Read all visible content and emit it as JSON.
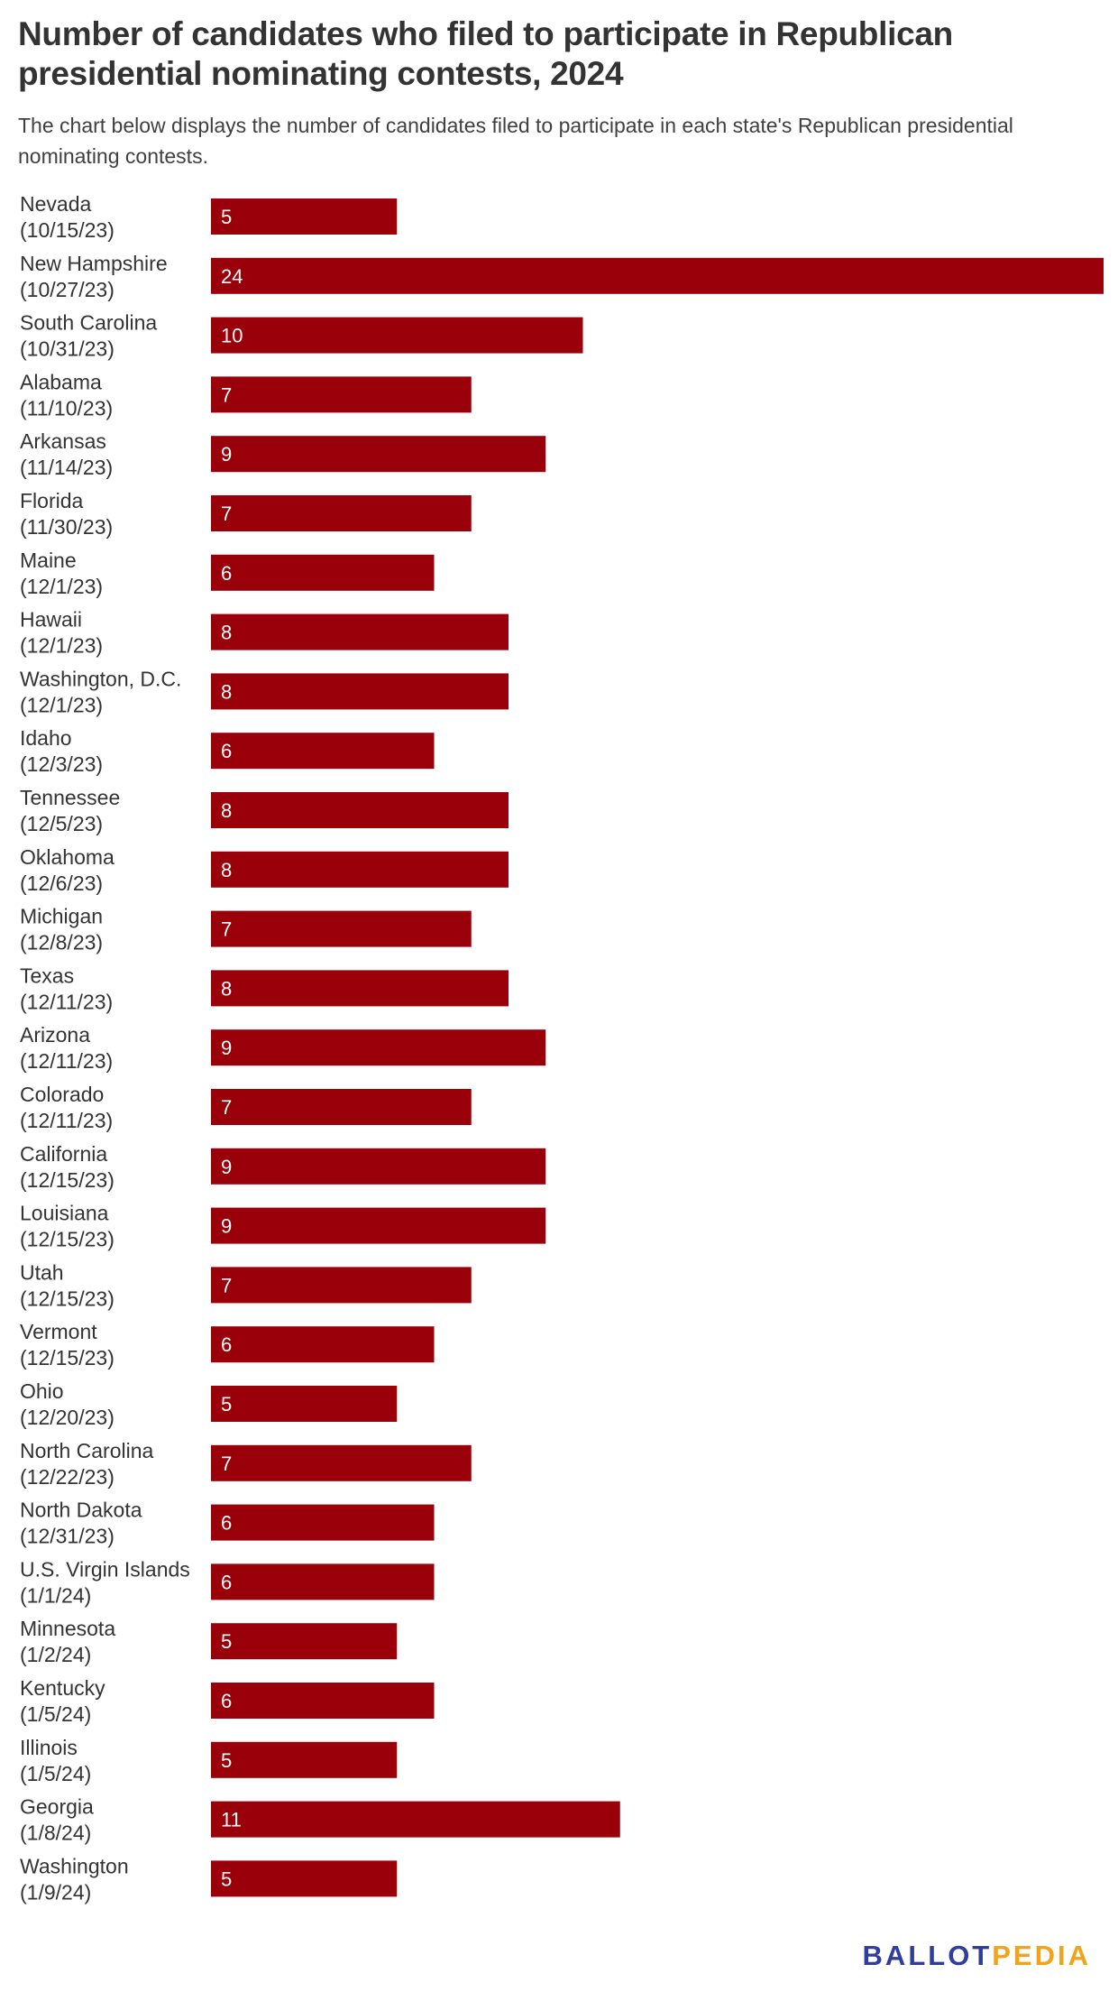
{
  "header": {
    "title": "Number of candidates who filed to participate in Republican presidential nominating contests, 2024",
    "subtitle": "The chart below displays the number of candidates filed to participate in each state's Republican presidential nominating contests."
  },
  "brand": {
    "part1": "BALLOT",
    "part2": "PEDIA",
    "color1": "#2f3e9e",
    "color2": "#f0a31b"
  },
  "colors": {
    "bar": "#990009",
    "label_text": "#333333",
    "value_text": "#ffffff"
  },
  "chart_data": {
    "type": "bar",
    "orientation": "horizontal",
    "categories": [
      [
        "Nevada",
        "(10/15/23)"
      ],
      [
        "New Hampshire",
        "(10/27/23)"
      ],
      [
        "South Carolina",
        "(10/31/23)"
      ],
      [
        "Alabama",
        "(11/10/23)"
      ],
      [
        "Arkansas",
        "(11/14/23)"
      ],
      [
        "Florida",
        "(11/30/23)"
      ],
      [
        "Maine",
        "(12/1/23)"
      ],
      [
        "Hawaii",
        "(12/1/23)"
      ],
      [
        "Washington, D.C.",
        "(12/1/23)"
      ],
      [
        "Idaho",
        "(12/3/23)"
      ],
      [
        "Tennessee",
        "(12/5/23)"
      ],
      [
        "Oklahoma",
        "(12/6/23)"
      ],
      [
        "Michigan",
        "(12/8/23)"
      ],
      [
        "Texas",
        "(12/11/23)"
      ],
      [
        "Arizona",
        "(12/11/23)"
      ],
      [
        "Colorado",
        "(12/11/23)"
      ],
      [
        "California",
        "(12/15/23)"
      ],
      [
        "Louisiana",
        "(12/15/23)"
      ],
      [
        "Utah",
        "(12/15/23)"
      ],
      [
        "Vermont",
        "(12/15/23)"
      ],
      [
        "Ohio",
        "(12/20/23)"
      ],
      [
        "North Carolina",
        "(12/22/23)"
      ],
      [
        "North Dakota",
        "(12/31/23)"
      ],
      [
        "U.S. Virgin Islands",
        "(1/1/24)"
      ],
      [
        "Minnesota",
        "(1/2/24)"
      ],
      [
        "Kentucky",
        "(1/5/24)"
      ],
      [
        "Illinois",
        "(1/5/24)"
      ],
      [
        "Georgia",
        "(1/8/24)"
      ],
      [
        "Washington",
        "(1/9/24)"
      ]
    ],
    "values": [
      5,
      24,
      10,
      7,
      9,
      7,
      6,
      8,
      8,
      6,
      8,
      8,
      7,
      8,
      9,
      7,
      9,
      9,
      7,
      6,
      5,
      7,
      6,
      6,
      5,
      6,
      5,
      11,
      5
    ],
    "xlim": [
      0,
      24
    ],
    "grid": false,
    "legend": "none",
    "data_labels": "inside-left"
  }
}
